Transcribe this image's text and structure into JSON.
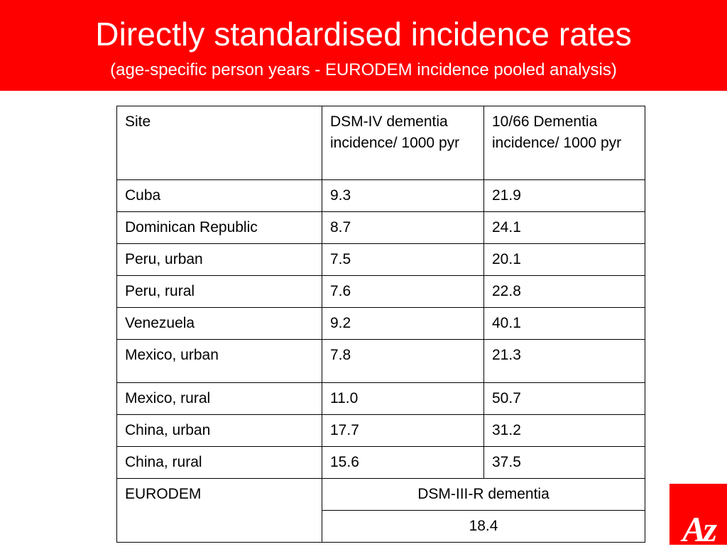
{
  "slide": {
    "title": "Directly standardised incidence rates",
    "subtitle": "(age-specific person years - EURODEM incidence pooled analysis)",
    "header_color": "#ff0000"
  },
  "table": {
    "headers": [
      "Site",
      "DSM-IV dementia incidence/ 1000 pyr",
      "10/66 Dementia incidence/ 1000 pyr"
    ],
    "rows": [
      [
        "Cuba",
        "9.3",
        "21.9"
      ],
      [
        "Dominican Republic",
        "8.7",
        "24.1"
      ],
      [
        "Peru, urban",
        "7.5",
        "20.1"
      ],
      [
        "Peru, rural",
        "7.6",
        "22.8"
      ],
      [
        "Venezuela",
        "9.2",
        "40.1"
      ],
      [
        "Mexico, urban",
        "7.8",
        "21.3"
      ],
      [
        "Mexico, rural",
        "11.0",
        "50.7"
      ],
      [
        "China, urban",
        "17.7",
        "31.2"
      ],
      [
        "China, rural",
        "15.6",
        "37.5"
      ]
    ],
    "eurodem": {
      "site": "EURODEM",
      "criteria": "DSM-III-R dementia",
      "value": "18.4"
    }
  },
  "logo": {
    "letters": "Az",
    "color": "#ff0000"
  }
}
